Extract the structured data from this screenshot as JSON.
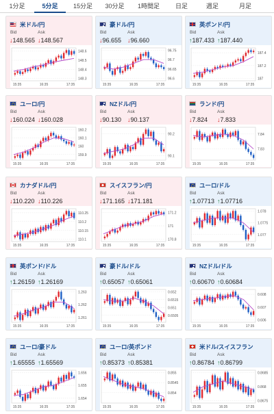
{
  "tabs": [
    "1分足",
    "5分足",
    "15分足",
    "30分足",
    "1時間足",
    "日足",
    "週足",
    "月足"
  ],
  "active_tab": "5分足",
  "bid_label": "Bid",
  "ask_label": "Ask",
  "cards": [
    {
      "pair": "米ドル/円",
      "flag": "us",
      "tone": "pink",
      "dir": "down",
      "bid": "148.565",
      "ask": "148.567",
      "y_ticks": [
        "148.6",
        "148.5",
        "148.4",
        "148.3"
      ],
      "x_ticks": [
        "15:35",
        "16:35",
        "17:35"
      ],
      "closes": [
        148.36,
        148.38,
        148.35,
        148.37,
        148.4,
        148.38,
        148.41,
        148.43,
        148.4,
        148.42,
        148.45,
        148.43,
        148.47,
        148.5,
        148.46,
        148.49,
        148.53,
        148.55,
        148.52,
        148.58,
        148.61,
        148.56,
        148.6,
        148.57
      ],
      "ma": [
        148.38,
        148.4,
        148.43,
        148.45,
        148.48,
        148.5,
        148.52
      ]
    },
    {
      "pair": "豪ドル/円",
      "flag": "au",
      "tone": "blue",
      "dir": "down",
      "bid": "96.655",
      "ask": "96.660",
      "y_ticks": [
        "96.75",
        "96.7",
        "96.65",
        "96.6"
      ],
      "x_ticks": [
        "15:35",
        "16:35",
        "17:35"
      ],
      "closes": [
        96.66,
        96.68,
        96.64,
        96.62,
        96.65,
        96.66,
        96.63,
        96.64,
        96.67,
        96.65,
        96.66,
        96.69,
        96.71,
        96.7,
        96.73,
        96.72,
        96.74,
        96.71,
        96.7,
        96.68,
        96.66,
        96.67,
        96.66,
        96.65
      ],
      "ma": [
        96.66,
        96.65,
        96.66,
        96.68,
        96.7,
        96.7,
        96.68
      ]
    },
    {
      "pair": "英ポンド/円",
      "flag": "gb",
      "tone": "blue",
      "dir": "up",
      "bid": "187.433",
      "ask": "187.440",
      "y_ticks": [
        "187.4",
        "187.2",
        "187"
      ],
      "x_ticks": [
        "15:35",
        "16:35",
        "17:35"
      ],
      "closes": [
        187.05,
        187.1,
        187.02,
        187.08,
        187.15,
        187.12,
        187.1,
        187.14,
        187.18,
        187.16,
        187.2,
        187.18,
        187.19,
        187.22,
        187.2,
        187.25,
        187.28,
        187.3,
        187.27,
        187.35,
        187.4,
        187.44,
        187.41,
        187.43
      ],
      "ma": [
        187.08,
        187.1,
        187.14,
        187.18,
        187.2,
        187.26,
        187.34
      ]
    },
    {
      "pair": "ユーロ/円",
      "flag": "eu",
      "tone": "pink",
      "dir": "down",
      "bid": "160.024",
      "ask": "160.028",
      "y_ticks": [
        "160.2",
        "160.1",
        "160",
        "159.9"
      ],
      "x_ticks": [
        "15:35",
        "16:35",
        "17:35"
      ],
      "closes": [
        159.88,
        159.9,
        159.86,
        159.92,
        159.94,
        159.9,
        159.95,
        159.98,
        160.02,
        159.99,
        160.06,
        160.1,
        160.07,
        160.12,
        160.16,
        160.13,
        160.1,
        160.12,
        160.08,
        160.06,
        160.03,
        160.05,
        160.01,
        160.02
      ],
      "ma": [
        159.9,
        159.93,
        159.98,
        160.05,
        160.1,
        160.09,
        160.05
      ]
    },
    {
      "pair": "NZドル/円",
      "flag": "nz",
      "tone": "pink",
      "dir": "down",
      "bid": "90.130",
      "ask": "90.137",
      "y_ticks": [
        "90.2",
        "90.1"
      ],
      "x_ticks": [
        "15:35",
        "16:35",
        "17:35"
      ],
      "closes": [
        90.11,
        90.13,
        90.09,
        90.1,
        90.14,
        90.12,
        90.11,
        90.13,
        90.15,
        90.12,
        90.14,
        90.13,
        90.16,
        90.18,
        90.15,
        90.2,
        90.22,
        90.19,
        90.21,
        90.17,
        90.15,
        90.16,
        90.12,
        90.13
      ],
      "ma": [
        90.11,
        90.12,
        90.13,
        90.15,
        90.18,
        90.18,
        90.15
      ]
    },
    {
      "pair": "ランド/円",
      "flag": "za",
      "tone": "pink",
      "dir": "down",
      "bid": "7.824",
      "ask": "7.833",
      "y_ticks": [
        "7.84",
        "7.83"
      ],
      "x_ticks": [
        "15:35",
        "16:35",
        "17:35"
      ],
      "closes": [
        7.838,
        7.842,
        7.836,
        7.84,
        7.838,
        7.835,
        7.839,
        7.841,
        7.837,
        7.84,
        7.838,
        7.843,
        7.84,
        7.838,
        7.841,
        7.839,
        7.842,
        7.836,
        7.833,
        7.835,
        7.83,
        7.828,
        7.826,
        7.824
      ],
      "ma": [
        7.839,
        7.838,
        7.839,
        7.84,
        7.839,
        7.836,
        7.83
      ]
    },
    {
      "pair": "カナダドル/円",
      "flag": "ca",
      "tone": "pink",
      "dir": "down",
      "bid": "110.220",
      "ask": "110.226",
      "y_ticks": [
        "110.25",
        "110.2",
        "110.15",
        "110.1"
      ],
      "x_ticks": [
        "15:35",
        "16:35",
        "17:35"
      ],
      "closes": [
        110.12,
        110.14,
        110.1,
        110.13,
        110.11,
        110.13,
        110.15,
        110.13,
        110.16,
        110.14,
        110.17,
        110.15,
        110.18,
        110.16,
        110.19,
        110.21,
        110.18,
        110.22,
        110.2,
        110.24,
        110.26,
        110.23,
        110.25,
        110.22
      ],
      "ma": [
        110.12,
        110.13,
        110.14,
        110.16,
        110.18,
        110.21,
        110.23
      ]
    },
    {
      "pair": "スイスフラン/円",
      "flag": "ch",
      "tone": "pink",
      "dir": "down",
      "bid": "171.165",
      "ask": "171.181",
      "y_ticks": [
        "171.2",
        "171",
        "170.8"
      ],
      "x_ticks": [
        "15:35",
        "16:35",
        "17:35"
      ],
      "closes": [
        170.84,
        170.88,
        170.92,
        170.95,
        170.9,
        170.93,
        170.98,
        171.02,
        170.99,
        171.04,
        171.0,
        171.03,
        171.06,
        171.02,
        171.05,
        171.1,
        171.08,
        171.15,
        171.2,
        171.17,
        171.22,
        171.18,
        171.2,
        171.17
      ],
      "ma": [
        170.88,
        170.94,
        171.0,
        171.03,
        171.07,
        171.14,
        171.18
      ]
    },
    {
      "pair": "ユーロ/ドル",
      "flag": "eu",
      "tone": "blue",
      "dir": "up",
      "bid": "1.07713",
      "ask": "1.07716",
      "y_ticks": [
        "1.078",
        "1.0775",
        "1.077"
      ],
      "x_ticks": [
        "15:35",
        "16:35",
        "17:35"
      ],
      "closes": [
        1.0775,
        1.0777,
        1.0773,
        1.0776,
        1.0779,
        1.0775,
        1.0778,
        1.0774,
        1.0777,
        1.078,
        1.0776,
        1.0778,
        1.0775,
        1.0779,
        1.0777,
        1.078,
        1.0776,
        1.0778,
        1.0774,
        1.0772,
        1.0768,
        1.077,
        1.0773,
        1.0771
      ],
      "ma": [
        1.0775,
        1.0776,
        1.0777,
        1.0777,
        1.0777,
        1.0775,
        1.0771
      ]
    },
    {
      "pair": "英ポンド/ドル",
      "flag": "gb",
      "tone": "blue",
      "dir": "up",
      "bid": "1.26159",
      "ask": "1.26169",
      "y_ticks": [
        "1.263",
        "1.262",
        "1.261"
      ],
      "x_ticks": [
        "15:35",
        "16:35",
        "17:35"
      ],
      "closes": [
        1.261,
        1.2614,
        1.2608,
        1.2612,
        1.2616,
        1.2611,
        1.2615,
        1.2618,
        1.2613,
        1.2617,
        1.262,
        1.2616,
        1.2619,
        1.2622,
        1.2618,
        1.2623,
        1.2626,
        1.263,
        1.2624,
        1.262,
        1.2617,
        1.2619,
        1.2614,
        1.2616
      ],
      "ma": [
        1.2611,
        1.2613,
        1.2616,
        1.2618,
        1.2622,
        1.2622,
        1.2617
      ]
    },
    {
      "pair": "豪ドル/ドル",
      "flag": "au",
      "tone": "blue",
      "dir": "up",
      "bid": "0.65057",
      "ask": "0.65061",
      "y_ticks": [
        "0.652",
        "0.6515",
        "0.651",
        "0.6505"
      ],
      "x_ticks": [
        "15:35",
        "16:35",
        "17:35"
      ],
      "closes": [
        0.6514,
        0.6518,
        0.6512,
        0.6516,
        0.6513,
        0.6515,
        0.6511,
        0.6514,
        0.6516,
        0.6512,
        0.6515,
        0.6517,
        0.652,
        0.6516,
        0.6513,
        0.6515,
        0.6511,
        0.6513,
        0.6509,
        0.6507,
        0.6504,
        0.6502,
        0.6504,
        0.6506
      ],
      "ma": [
        0.6515,
        0.6514,
        0.6514,
        0.6516,
        0.6514,
        0.6511,
        0.6506
      ]
    },
    {
      "pair": "NZドル/ドル",
      "flag": "nz",
      "tone": "blue",
      "dir": "up",
      "bid": "0.60670",
      "ask": "0.60684",
      "y_ticks": [
        "0.608",
        "0.607",
        "0.606"
      ],
      "x_ticks": [
        "15:35",
        "16:35",
        "17:35"
      ],
      "closes": [
        0.6074,
        0.6077,
        0.6072,
        0.6076,
        0.6079,
        0.6075,
        0.6078,
        0.6074,
        0.6077,
        0.608,
        0.6076,
        0.6079,
        0.6077,
        0.608,
        0.6078,
        0.6082,
        0.6079,
        0.6076,
        0.6072,
        0.6069,
        0.607,
        0.6066,
        0.6064,
        0.6067
      ],
      "ma": [
        0.6075,
        0.6076,
        0.6077,
        0.6078,
        0.6079,
        0.6076,
        0.6068
      ]
    },
    {
      "pair": "ユーロ/豪ドル",
      "flag": "eu",
      "tone": "blue",
      "dir": "up",
      "bid": "1.65555",
      "ask": "1.65569",
      "y_ticks": [
        "1.656",
        "1.655",
        "1.654"
      ],
      "x_ticks": [
        "15:35",
        "16:35",
        "17:35"
      ],
      "closes": [
        1.6544,
        1.6546,
        1.6541,
        1.6538,
        1.6543,
        1.654,
        1.6545,
        1.6548,
        1.6544,
        1.6547,
        1.655,
        1.6546,
        1.6549,
        1.6553,
        1.655,
        1.6547,
        1.6551,
        1.6556,
        1.6553,
        1.6558,
        1.6555,
        1.656,
        1.6557,
        1.6556
      ],
      "ma": [
        1.6542,
        1.6543,
        1.6546,
        1.6549,
        1.655,
        1.6553,
        1.6556
      ]
    },
    {
      "pair": "ユーロ/英ポンド",
      "flag": "eu",
      "tone": "blue",
      "dir": "up",
      "bid": "0.85373",
      "ask": "0.85381",
      "y_ticks": [
        "0.855",
        "0.8545",
        "0.854"
      ],
      "x_ticks": [
        "15:35",
        "16:35",
        "17:35"
      ],
      "closes": [
        0.8547,
        0.855,
        0.8546,
        0.8549,
        0.8547,
        0.8544,
        0.8546,
        0.8543,
        0.8545,
        0.8542,
        0.8544,
        0.8541,
        0.8543,
        0.8545,
        0.8542,
        0.8544,
        0.8541,
        0.8539,
        0.8541,
        0.8538,
        0.854,
        0.8537,
        0.8536,
        0.8537
      ],
      "ma": [
        0.8548,
        0.8546,
        0.8544,
        0.8543,
        0.8542,
        0.854,
        0.8538
      ]
    },
    {
      "pair": "米ドル/スイスフラン",
      "flag": "ch",
      "tone": "blue",
      "dir": "up",
      "bid": "0.86784",
      "ask": "0.86799",
      "y_ticks": [
        "0.8685",
        "0.868",
        "0.8675"
      ],
      "x_ticks": [
        "15:35",
        "16:35",
        "17:35"
      ],
      "closes": [
        0.8677,
        0.868,
        0.8676,
        0.8679,
        0.8682,
        0.8678,
        0.8681,
        0.8684,
        0.868,
        0.8683,
        0.8679,
        0.8682,
        0.8685,
        0.8681,
        0.8683,
        0.868,
        0.8682,
        0.8679,
        0.8681,
        0.8678,
        0.868,
        0.8677,
        0.8679,
        0.8678
      ],
      "ma": [
        0.8678,
        0.868,
        0.8681,
        0.8682,
        0.8681,
        0.868,
        0.8679
      ]
    }
  ]
}
